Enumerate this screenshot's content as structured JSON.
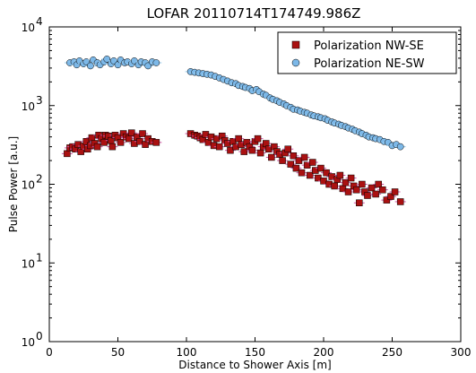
{
  "chart_data": {
    "type": "scatter",
    "title": "LOFAR 20110714T174749.986Z",
    "xlabel": "Distance to Shower Axis [m]",
    "ylabel": "Pulse Power [a.u.]",
    "xlim": [
      0,
      300
    ],
    "ylim": [
      1,
      10000
    ],
    "y_scale": "log",
    "x_ticks": [
      0,
      50,
      100,
      150,
      200,
      250,
      300
    ],
    "x_tick_labels": [
      "0",
      "50",
      "100",
      "150",
      "200",
      "250",
      "300"
    ],
    "y_ticks": [
      1,
      10,
      100,
      1000,
      10000
    ],
    "y_tick_labels": [
      {
        "base": "10",
        "exp": "0"
      },
      {
        "base": "10",
        "exp": "1"
      },
      {
        "base": "10",
        "exp": "2"
      },
      {
        "base": "10",
        "exp": "3"
      },
      {
        "base": "10",
        "exp": "4"
      }
    ],
    "grid": false,
    "legend_position": "top-right",
    "series": [
      {
        "name": "Polarization NW-SE",
        "marker": "square",
        "color": "#aa1111",
        "error_color": "#d050a0",
        "points": [
          [
            13,
            245
          ],
          [
            15,
            290
          ],
          [
            17,
            300
          ],
          [
            19,
            280
          ],
          [
            21,
            320
          ],
          [
            23,
            260
          ],
          [
            25,
            305
          ],
          [
            27,
            350
          ],
          [
            28,
            280
          ],
          [
            30,
            310
          ],
          [
            31,
            390
          ],
          [
            33,
            330
          ],
          [
            35,
            300
          ],
          [
            36,
            420
          ],
          [
            38,
            380
          ],
          [
            40,
            340
          ],
          [
            41,
            420
          ],
          [
            43,
            410
          ],
          [
            45,
            360
          ],
          [
            46,
            300
          ],
          [
            48,
            420
          ],
          [
            50,
            390
          ],
          [
            52,
            340
          ],
          [
            54,
            440
          ],
          [
            56,
            400
          ],
          [
            58,
            380
          ],
          [
            60,
            450
          ],
          [
            62,
            330
          ],
          [
            64,
            400
          ],
          [
            66,
            350
          ],
          [
            68,
            440
          ],
          [
            70,
            320
          ],
          [
            72,
            380
          ],
          [
            75,
            350
          ],
          [
            78,
            340
          ],
          [
            103,
            440
          ],
          [
            106,
            420
          ],
          [
            108,
            410
          ],
          [
            110,
            390
          ],
          [
            112,
            370
          ],
          [
            114,
            430
          ],
          [
            116,
            340
          ],
          [
            118,
            400
          ],
          [
            120,
            310
          ],
          [
            122,
            380
          ],
          [
            124,
            300
          ],
          [
            126,
            410
          ],
          [
            128,
            360
          ],
          [
            130,
            330
          ],
          [
            132,
            270
          ],
          [
            134,
            350
          ],
          [
            136,
            300
          ],
          [
            138,
            380
          ],
          [
            140,
            320
          ],
          [
            142,
            260
          ],
          [
            144,
            340
          ],
          [
            146,
            300
          ],
          [
            148,
            270
          ],
          [
            150,
            350
          ],
          [
            152,
            380
          ],
          [
            154,
            250
          ],
          [
            156,
            300
          ],
          [
            158,
            330
          ],
          [
            160,
            280
          ],
          [
            162,
            220
          ],
          [
            164,
            300
          ],
          [
            166,
            260
          ],
          [
            168,
            240
          ],
          [
            170,
            200
          ],
          [
            172,
            250
          ],
          [
            174,
            280
          ],
          [
            176,
            180
          ],
          [
            178,
            230
          ],
          [
            180,
            160
          ],
          [
            182,
            200
          ],
          [
            184,
            140
          ],
          [
            186,
            220
          ],
          [
            188,
            175
          ],
          [
            190,
            130
          ],
          [
            192,
            190
          ],
          [
            194,
            150
          ],
          [
            196,
            120
          ],
          [
            198,
            160
          ],
          [
            200,
            110
          ],
          [
            202,
            140
          ],
          [
            204,
            100
          ],
          [
            206,
            125
          ],
          [
            208,
            95
          ],
          [
            210,
            115
          ],
          [
            212,
            130
          ],
          [
            214,
            88
          ],
          [
            216,
            105
          ],
          [
            218,
            80
          ],
          [
            220,
            120
          ],
          [
            222,
            95
          ],
          [
            224,
            85
          ],
          [
            226,
            58
          ],
          [
            228,
            100
          ],
          [
            230,
            80
          ],
          [
            232,
            72
          ],
          [
            235,
            90
          ],
          [
            238,
            75
          ],
          [
            240,
            100
          ],
          [
            243,
            85
          ],
          [
            246,
            63
          ],
          [
            249,
            70
          ],
          [
            252,
            80
          ],
          [
            256,
            60
          ]
        ]
      },
      {
        "name": "Polarization NE-SW",
        "marker": "circle",
        "color": "#7cb8e8",
        "error_color": "#9fd0f0",
        "points": [
          [
            15,
            3500
          ],
          [
            18,
            3600
          ],
          [
            20,
            3300
          ],
          [
            22,
            3700
          ],
          [
            25,
            3400
          ],
          [
            27,
            3600
          ],
          [
            30,
            3200
          ],
          [
            32,
            3800
          ],
          [
            35,
            3500
          ],
          [
            37,
            3300
          ],
          [
            40,
            3600
          ],
          [
            42,
            3900
          ],
          [
            45,
            3400
          ],
          [
            47,
            3700
          ],
          [
            50,
            3300
          ],
          [
            52,
            3800
          ],
          [
            55,
            3500
          ],
          [
            57,
            3600
          ],
          [
            60,
            3400
          ],
          [
            62,
            3700
          ],
          [
            65,
            3300
          ],
          [
            67,
            3600
          ],
          [
            70,
            3500
          ],
          [
            72,
            3200
          ],
          [
            75,
            3600
          ],
          [
            78,
            3500
          ],
          [
            103,
            2700
          ],
          [
            106,
            2650
          ],
          [
            109,
            2600
          ],
          [
            112,
            2550
          ],
          [
            115,
            2500
          ],
          [
            118,
            2450
          ],
          [
            121,
            2350
          ],
          [
            124,
            2250
          ],
          [
            127,
            2150
          ],
          [
            130,
            2050
          ],
          [
            133,
            1950
          ],
          [
            136,
            1900
          ],
          [
            138,
            1800
          ],
          [
            141,
            1750
          ],
          [
            143,
            1700
          ],
          [
            146,
            1650
          ],
          [
            148,
            1550
          ],
          [
            151,
            1600
          ],
          [
            153,
            1500
          ],
          [
            156,
            1400
          ],
          [
            158,
            1350
          ],
          [
            161,
            1250
          ],
          [
            163,
            1200
          ],
          [
            166,
            1150
          ],
          [
            168,
            1100
          ],
          [
            171,
            1050
          ],
          [
            173,
            1000
          ],
          [
            176,
            950
          ],
          [
            178,
            900
          ],
          [
            181,
            880
          ],
          [
            183,
            850
          ],
          [
            186,
            820
          ],
          [
            188,
            800
          ],
          [
            191,
            760
          ],
          [
            193,
            740
          ],
          [
            196,
            720
          ],
          [
            198,
            700
          ],
          [
            201,
            680
          ],
          [
            203,
            650
          ],
          [
            206,
            620
          ],
          [
            208,
            600
          ],
          [
            211,
            580
          ],
          [
            213,
            560
          ],
          [
            216,
            540
          ],
          [
            218,
            520
          ],
          [
            221,
            500
          ],
          [
            223,
            480
          ],
          [
            226,
            460
          ],
          [
            228,
            440
          ],
          [
            231,
            420
          ],
          [
            233,
            400
          ],
          [
            236,
            390
          ],
          [
            238,
            380
          ],
          [
            241,
            370
          ],
          [
            244,
            350
          ],
          [
            247,
            340
          ],
          [
            250,
            310
          ],
          [
            253,
            320
          ],
          [
            256,
            300
          ]
        ]
      }
    ]
  }
}
